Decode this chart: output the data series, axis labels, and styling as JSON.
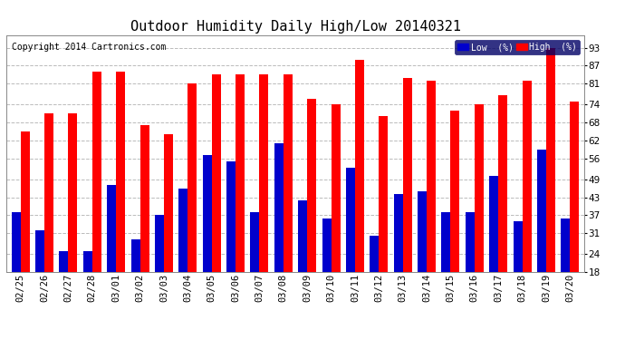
{
  "title": "Outdoor Humidity Daily High/Low 20140321",
  "copyright": "Copyright 2014 Cartronics.com",
  "dates": [
    "02/25",
    "02/26",
    "02/27",
    "02/28",
    "03/01",
    "03/02",
    "03/03",
    "03/04",
    "03/05",
    "03/06",
    "03/07",
    "03/08",
    "03/09",
    "03/10",
    "03/11",
    "03/12",
    "03/13",
    "03/14",
    "03/15",
    "03/16",
    "03/17",
    "03/18",
    "03/19",
    "03/20"
  ],
  "high": [
    65,
    71,
    71,
    85,
    85,
    67,
    64,
    81,
    84,
    84,
    84,
    84,
    76,
    74,
    89,
    70,
    83,
    82,
    72,
    74,
    77,
    82,
    93,
    75
  ],
  "low": [
    38,
    32,
    25,
    25,
    47,
    29,
    37,
    46,
    57,
    55,
    38,
    61,
    42,
    36,
    53,
    30,
    44,
    45,
    38,
    38,
    50,
    35,
    59,
    36
  ],
  "high_color": "#FF0000",
  "low_color": "#0000CC",
  "background_color": "#FFFFFF",
  "grid_color": "#BBBBBB",
  "yticks": [
    18,
    24,
    31,
    37,
    43,
    49,
    56,
    62,
    68,
    74,
    81,
    87,
    93
  ],
  "ymin": 18,
  "ymax": 97,
  "title_fontsize": 11,
  "axis_fontsize": 7.5,
  "copyright_fontsize": 7,
  "legend_fontsize": 7,
  "bar_width": 0.38
}
